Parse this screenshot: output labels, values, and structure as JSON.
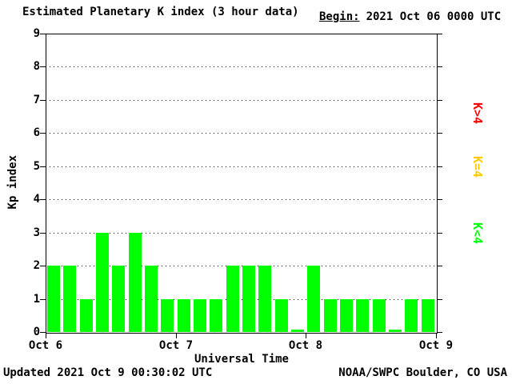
{
  "header": {
    "title": "Estimated Planetary K index (3 hour data)",
    "begin_label": "Begin:",
    "begin_value": "2021 Oct 06 0000 UTC"
  },
  "legend": [
    {
      "label": "K>4",
      "color": "#ff0000"
    },
    {
      "label": "K=4",
      "color": "#ffc800"
    },
    {
      "label": "K<4",
      "color": "#00ff00"
    }
  ],
  "footer": {
    "updated": "Updated 2021 Oct 9 00:30:02 UTC",
    "source": "NOAA/SWPC Boulder, CO USA"
  },
  "chart_data": {
    "type": "bar",
    "title": "Estimated Planetary K index (3 hour data)",
    "xlabel": "Universal Time",
    "ylabel": "Kp index",
    "ylim": [
      0,
      9
    ],
    "yticks": [
      0,
      1,
      2,
      3,
      4,
      5,
      6,
      7,
      8,
      9
    ],
    "xticklabels": [
      "Oct 6",
      "Oct 7",
      "Oct 8",
      "Oct 9"
    ],
    "interval_hours": 3,
    "begin": "2021 Oct 06 0000 UTC",
    "grid": "dotted-horizontal",
    "legend_position": "right",
    "colors": {
      "above4": "#ff0000",
      "equal4": "#ffc800",
      "below4": "#00ff00"
    },
    "values": [
      2,
      2,
      1,
      3,
      2,
      3,
      2,
      1,
      1,
      1,
      1,
      2,
      2,
      2,
      1,
      0,
      2,
      1,
      1,
      1,
      1,
      0,
      1,
      1
    ]
  }
}
